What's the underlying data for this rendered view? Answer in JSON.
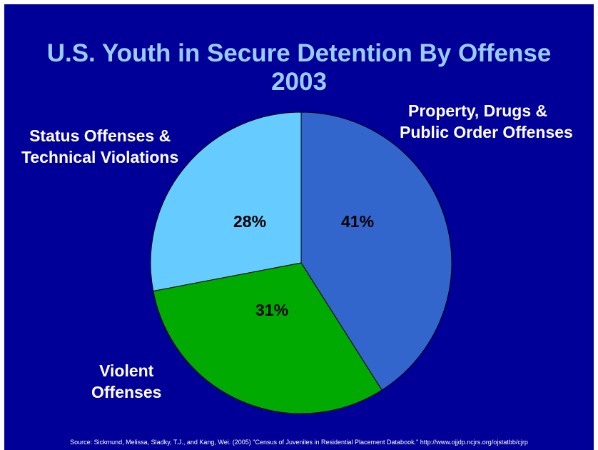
{
  "chart_data": {
    "type": "pie",
    "title": "U.S. Youth in Secure Detention By Offense",
    "subtitle": "2003",
    "categories": [
      "Property, Drugs & Public Order Offenses",
      "Violent Offenses",
      "Status Offenses & Technical Violations"
    ],
    "category_lines": [
      [
        "Property, Drugs &",
        "Public Order Offenses"
      ],
      [
        "Violent",
        "Offenses"
      ],
      [
        "Status Offenses &",
        "Technical Violations"
      ]
    ],
    "values": [
      41,
      31,
      28
    ],
    "value_labels": [
      "41%",
      "31%",
      "28%"
    ],
    "colors": [
      "#3366CC",
      "#00AA00",
      "#66CCFF"
    ]
  },
  "source": "Source: Sickmund, Melissa, Sladky, T.J., and Kang, Wei. (2005) \"Census of Juveniles in Residential Placement Databook.\" http://www.ojjdp.ncjrs.org/ojstatbb/cjrp",
  "colors": {
    "background": "#000099",
    "title": "#99CCFF",
    "label": "#FFFFFF"
  }
}
